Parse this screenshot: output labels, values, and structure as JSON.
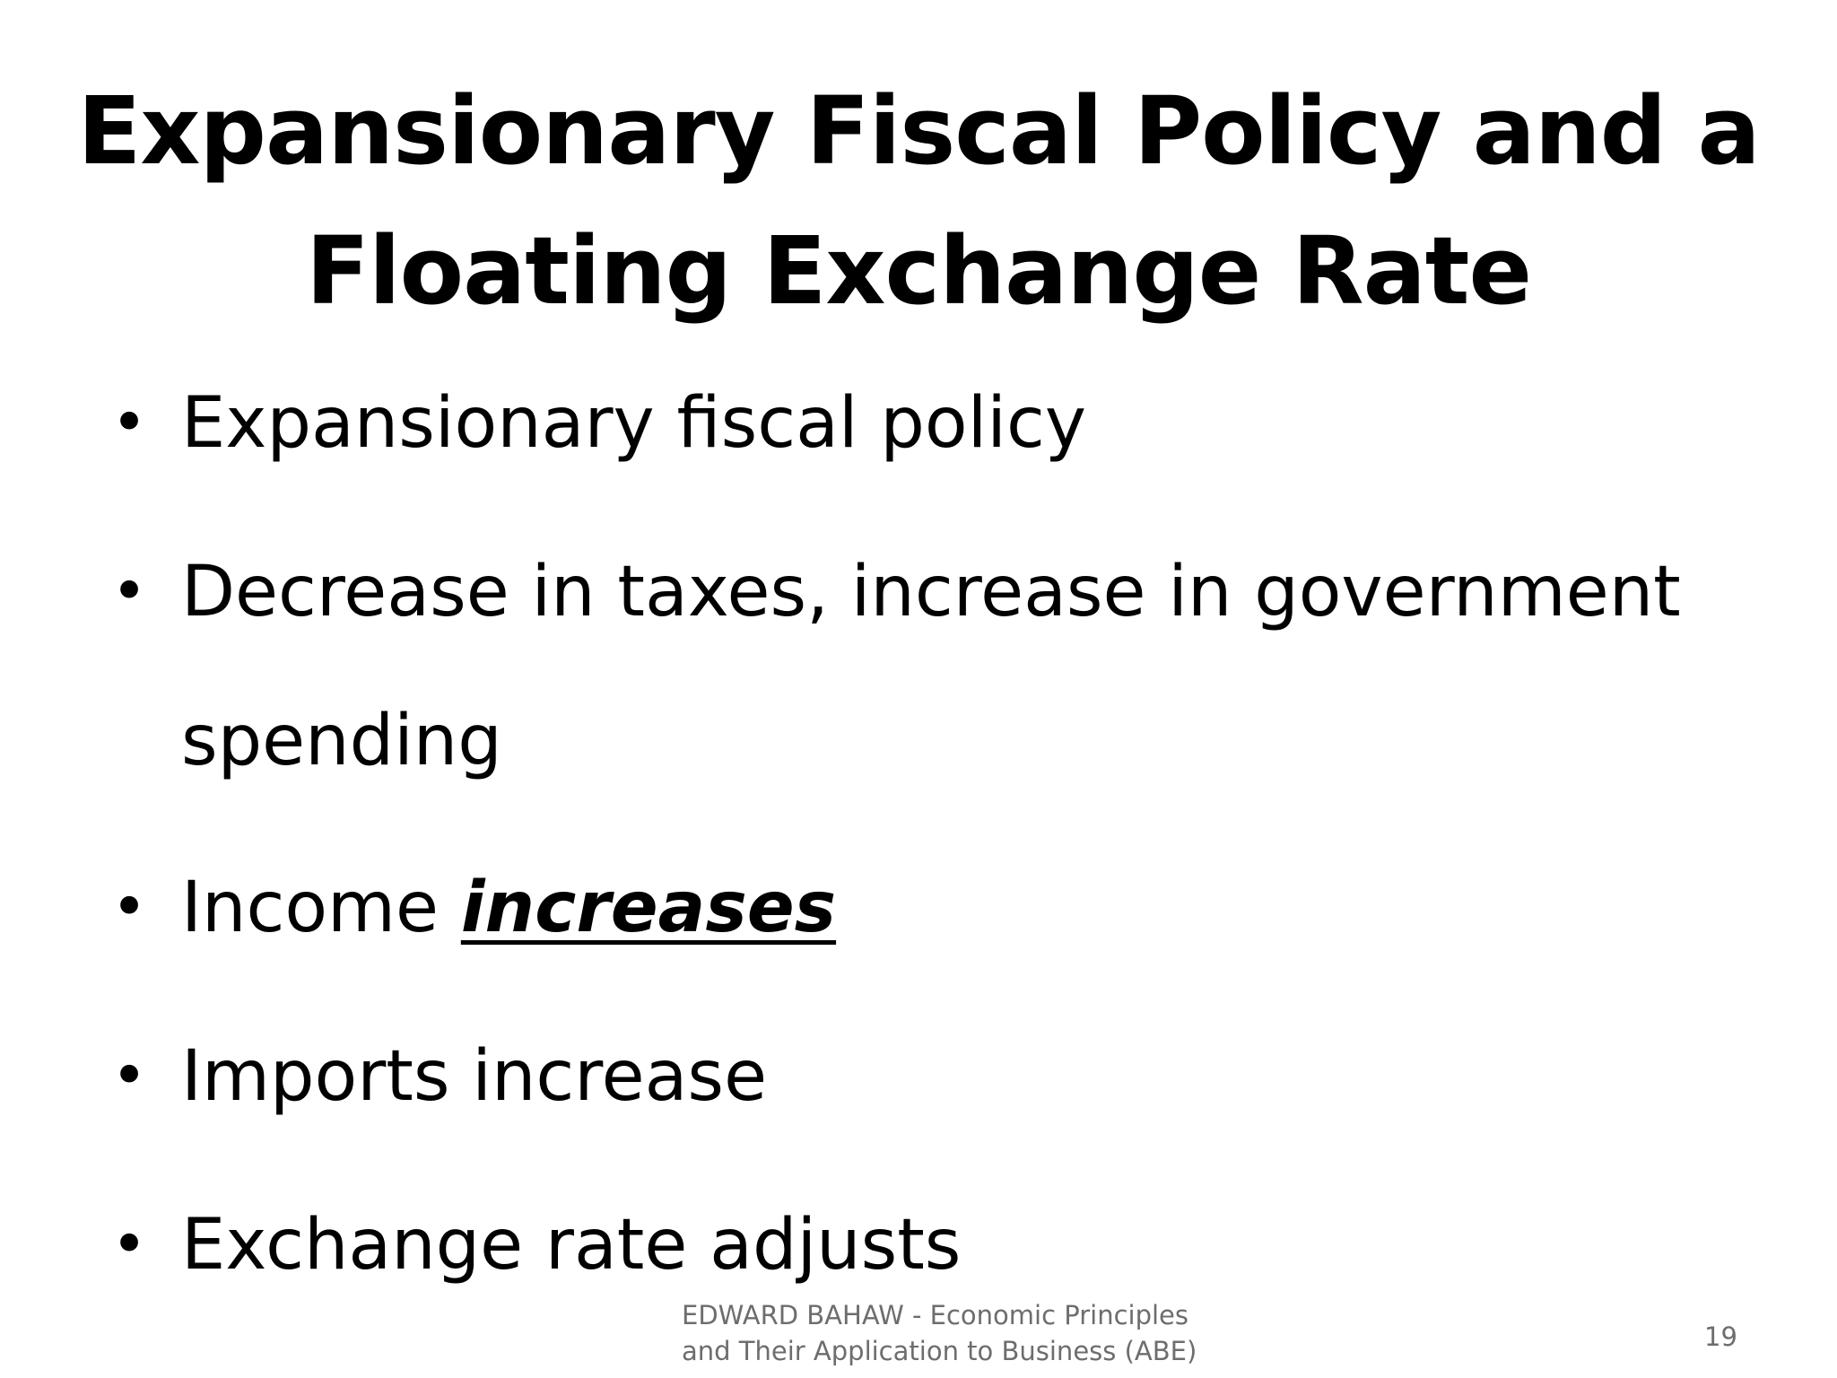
{
  "slide": {
    "title_line_1": "Expansionary Fiscal Policy and a",
    "title_line_2": "Floating Exchange Rate",
    "bullets": [
      {
        "text": "Expansionary fiscal policy"
      },
      {
        "text": "Decrease in taxes, increase in government spending"
      },
      {
        "prefix": "Income ",
        "emphasis": "increases"
      },
      {
        "text": "Imports increase"
      },
      {
        "text": "Exchange rate adjusts"
      }
    ],
    "bullet_glyph": "•",
    "footer_line_1": "EDWARD BAHAW - Economic Principles",
    "footer_line_2": "and Their Application to Business (ABE)",
    "page_number": "19"
  }
}
